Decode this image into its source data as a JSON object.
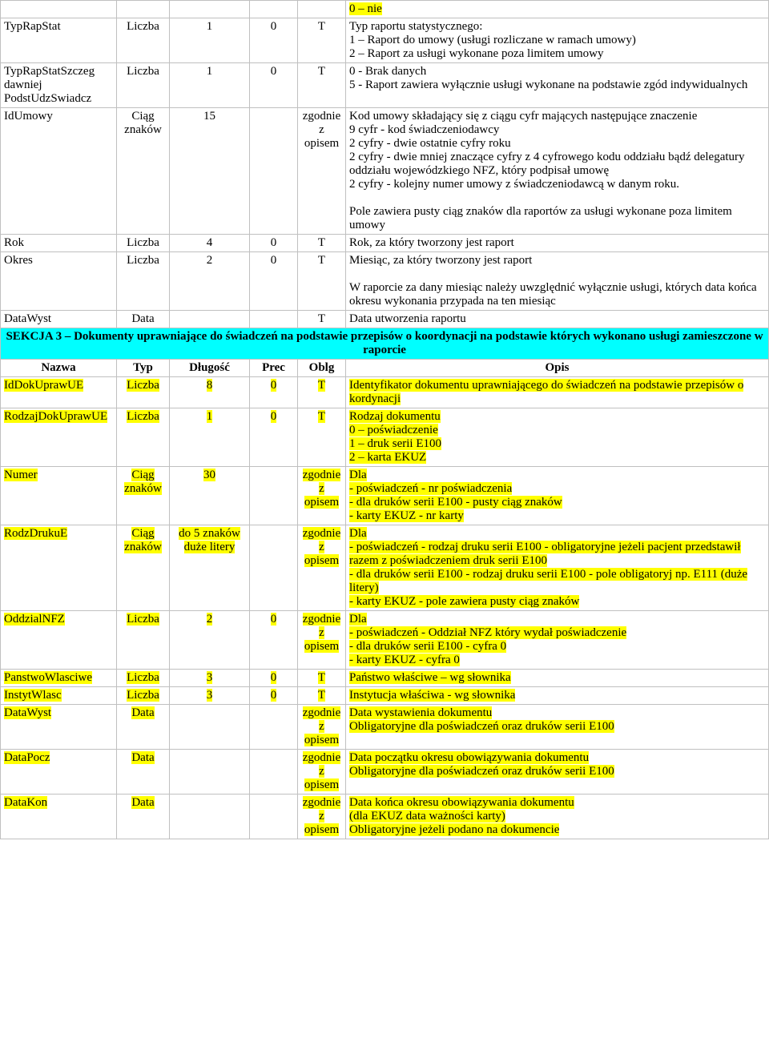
{
  "rows": [
    {
      "name": "",
      "type": "",
      "len": "",
      "prec": "",
      "oblg": "",
      "opis": "0 – nie",
      "opis_hl": true
    },
    {
      "name": "TypRapStat",
      "type": "Liczba",
      "len": "1",
      "prec": "0",
      "oblg": "T",
      "opis": "Typ raportu statystycznego:\n1 – Raport do umowy (usługi rozliczane w ramach umowy)\n2 – Raport za usługi wykonane poza limitem umowy"
    },
    {
      "name": "TypRapStatSzczeg\ndawniej\nPodstUdzSwiadcz",
      "type": "Liczba",
      "len": "1",
      "prec": "0",
      "oblg": "T",
      "opis": "0 - Brak danych\n5 - Raport zawiera wyłącznie usługi wykonane na podstawie zgód indywidualnych"
    },
    {
      "name": "IdUmowy",
      "type": "Ciąg znaków",
      "len": "15",
      "prec": "",
      "oblg": "zgodnie z opisem",
      "opis": "Kod umowy składający się z ciągu cyfr mających następujące znaczenie\n9 cyfr   - kod świadczeniodawcy\n2 cyfry  - dwie ostatnie cyfry roku\n2 cyfry  - dwie mniej znaczące cyfry z 4 cyfrowego kodu oddziału bądź delegatury oddziału wojewódzkiego NFZ, który podpisał umowę\n2 cyfry - kolejny numer umowy z świadczeniodawcą w danym roku.\n\nPole zawiera pusty ciąg znaków dla raportów za usługi wykonane poza limitem umowy"
    },
    {
      "name": "Rok",
      "type": "Liczba",
      "len": "4",
      "prec": "0",
      "oblg": "T",
      "opis": "Rok, za który tworzony jest raport"
    },
    {
      "name": "Okres",
      "type": "Liczba",
      "len": "2",
      "prec": "0",
      "oblg": "T",
      "opis": "Miesiąc, za który tworzony jest raport\n\nW raporcie za dany miesiąc należy uwzględnić wyłącznie usługi, których data końca okresu wykonania przypada na ten miesiąc"
    },
    {
      "name": "DataWyst",
      "type": "Data",
      "len": "",
      "prec": "",
      "oblg": "T",
      "opis": "Data utworzenia raportu"
    }
  ],
  "section3": {
    "title": "SEKCJA 3 – Dokumenty uprawniające do świadczeń na podstawie przepisów o koordynacji na podstawie których wykonano usługi zamieszczone w raporcie",
    "headers": {
      "nazwa": "Nazwa",
      "typ": "Typ",
      "dlugosc": "Długość",
      "prec": "Prec",
      "oblg": "Oblg",
      "opis": "Opis"
    }
  },
  "rows2": [
    {
      "name": "IdDokUprawUE",
      "type": "Liczba",
      "len": "8",
      "prec": "0",
      "oblg": "T",
      "opis": "Identyfikator dokumentu uprawniającego do świadczeń na podstawie przepisów o kordynacji",
      "hl": true
    },
    {
      "name": "RodzajDokUprawUE",
      "type": "Liczba",
      "len": "1",
      "prec": "0",
      "oblg": "T",
      "opis": "Rodzaj dokumentu\n0 – poświadczenie\n1 – druk serii E100\n2 – karta EKUZ",
      "hl": true
    },
    {
      "name": "Numer",
      "type": "Ciąg znaków",
      "len": "30",
      "prec": "",
      "oblg": "zgodnie z opisem",
      "opis": "Dla\n- poświadczeń  - nr poświadczenia\n- dla druków serii E100 - pusty ciąg znaków\n- karty EKUZ - nr karty",
      "hl": true
    },
    {
      "name": "RodzDrukuE",
      "type": "Ciąg znaków",
      "len": "do 5 znaków duże litery",
      "prec": "",
      "oblg": "zgodnie z opisem",
      "opis": "Dla\n- poświadczeń  - rodzaj druku serii E100 - obligatoryjne jeżeli pacjent przedstawił razem z poświadczeniem druk serii E100\n- dla druków serii E100 - rodzaj druku serii E100 - pole obligatoryj np. E111 (duże litery)\n- karty EKUZ - pole zawiera pusty ciąg znaków",
      "hl": true
    },
    {
      "name": "OddzialNFZ",
      "type": "Liczba",
      "len": "2",
      "prec": "0",
      "oblg": "zgodnie z opisem",
      "opis": "Dla\n- poświadczeń  - Oddział NFZ który wydał poświadczenie\n- dla druków serii E100 - cyfra 0\n- karty EKUZ - cyfra 0",
      "hl": true
    },
    {
      "name": "PanstwoWlasciwe",
      "type": "Liczba",
      "len": "3",
      "prec": "0",
      "oblg": "T",
      "opis": "Państwo właściwe – wg słownika",
      "hl": true
    },
    {
      "name": "InstytWlasc",
      "type": "Liczba",
      "len": "3",
      "prec": "0",
      "oblg": "T",
      "opis": "Instytucja właściwa - wg słownika",
      "hl": true
    },
    {
      "name": "DataWyst",
      "type": "Data",
      "len": "",
      "prec": "",
      "oblg": "zgodnie z opisem",
      "opis": "Data wystawienia dokumentu\nObligatoryjne dla poświadczeń oraz druków serii E100",
      "hl": true
    },
    {
      "name": "DataPocz",
      "type": "Data",
      "len": "",
      "prec": "",
      "oblg": "zgodnie z opisem",
      "opis": "Data początku okresu obowiązywania dokumentu\nObligatoryjne dla poświadczeń oraz druków serii E100",
      "hl": true
    },
    {
      "name": "DataKon",
      "type": "Data",
      "len": "",
      "prec": "",
      "oblg": "zgodnie z opisem",
      "opis": "Data końca okresu obowiązywania dokumentu\n(dla EKUZ data ważności karty)\nObligatoryjne jeżeli podano na dokumencie",
      "hl": true
    }
  ]
}
